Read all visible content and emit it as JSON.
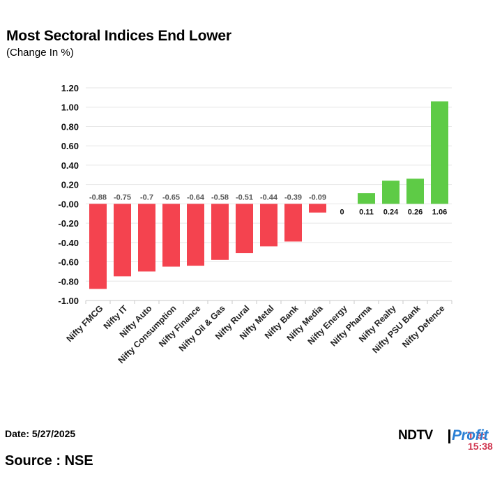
{
  "header": {
    "title": "Most Sectoral Indices End Lower",
    "subtitle": "(Change In %)"
  },
  "footer": {
    "date": "Date: 5/27/2025",
    "source": "Source : NSE",
    "time_fragment": "T  e: 15:38"
  },
  "logo": {
    "ndtv": "NDTV",
    "profit": "Profit"
  },
  "colors": {
    "negative": "#f4434f",
    "positive": "#5ecb46",
    "grid": "#e6e6e6",
    "axis": "#c8c8c8"
  },
  "chart_data": {
    "type": "bar",
    "title": "Most Sectoral Indices End Lower",
    "subtitle": "(Change In %)",
    "categories": [
      "Nifty FMCG",
      "Nifty IT",
      "Nifty Auto",
      "Nifty Consumption",
      "Nifty Finance",
      "Nifty Oil & Gas",
      "Nifty Rural",
      "Nifty Metal",
      "Nifty Bank",
      "Nifty Media",
      "Nifty Energy",
      "Nifty Pharma",
      "Nifty Realty",
      "Nifty PSU Bank",
      "Nifty Defence"
    ],
    "values": [
      -0.88,
      -0.75,
      -0.7,
      -0.65,
      -0.64,
      -0.58,
      -0.51,
      -0.44,
      -0.39,
      -0.09,
      0,
      0.11,
      0.24,
      0.26,
      1.06
    ],
    "value_labels": [
      "-0.88",
      "-0.75",
      "-0.7",
      "-0.65",
      "-0.64",
      "-0.58",
      "-0.51",
      "-0.44",
      "-0.39",
      "-0.09",
      "0",
      "0.11",
      "0.24",
      "0.26",
      "1.06"
    ],
    "yticks": [
      1.2,
      1.0,
      0.8,
      0.6,
      0.4,
      0.2,
      0,
      -0.2,
      -0.4,
      -0.6,
      -0.8,
      -1.0
    ],
    "ytick_labels": [
      "1.20",
      "1.00",
      "0.80",
      "0.60",
      "0.40",
      "0.20",
      "-0.00",
      "-0.20",
      "-0.40",
      "-0.60",
      "-0.80",
      "-1.00"
    ],
    "ylim": [
      -1.0,
      1.2
    ],
    "grid": true,
    "legend": "none"
  }
}
